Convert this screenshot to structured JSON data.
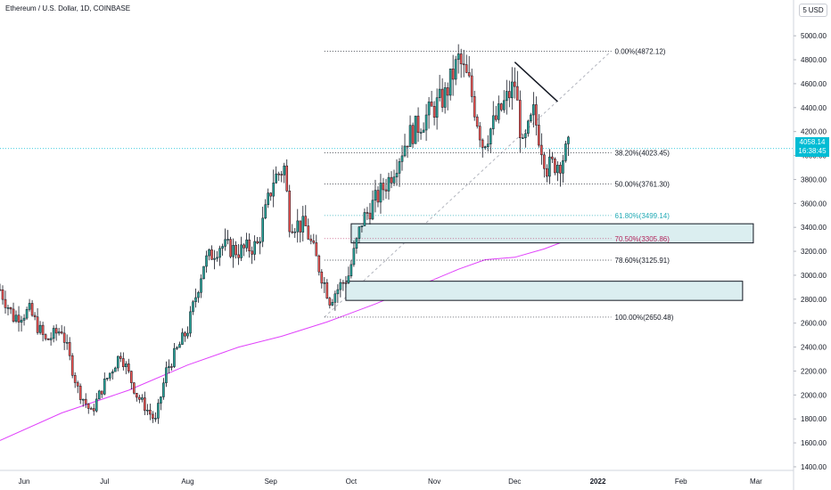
{
  "header": {
    "title": "Ethereum / U.S. Dollar, 1D, COINBASE"
  },
  "currency_badge": {
    "prefix": "5",
    "label": "USD"
  },
  "last_price": {
    "value": "4058.14",
    "countdown": "16:38:45"
  },
  "colors": {
    "up": "#26a69a",
    "down": "#ef5350",
    "text_up_fib": "#089981",
    "accent_fib_618": "#22aab5",
    "accent_fib_705": "#b2245b",
    "ma_line": "#e040fb",
    "zone_fill": "#dbeef0",
    "tag_bg": "#00bcd4"
  },
  "chart_data": {
    "type": "candlestick",
    "y_axis": {
      "ticks": [
        "5000.00",
        "4800.00",
        "4600.00",
        "4400.00",
        "4200.00",
        "4000.00",
        "3800.00",
        "3600.00",
        "3400.00",
        "3200.00",
        "3000.00",
        "2800.00",
        "2600.00",
        "2400.00",
        "2200.00",
        "2000.00",
        "1800.00",
        "1600.00",
        "1400.00"
      ],
      "range": [
        1370,
        5150
      ]
    },
    "x_axis": {
      "labels": [
        "Jun",
        "Jul",
        "Aug",
        "Sep",
        "Oct",
        "Nov",
        "Dec",
        "2022",
        "Feb",
        "Mar"
      ],
      "range": [
        "2021-05-23",
        "2022-03-15"
      ]
    },
    "fib_levels": [
      {
        "label": "0.00%(4872.12)",
        "value": 4872.12,
        "color": "#131722"
      },
      {
        "label": "38.20%(4023.45)",
        "value": 4023.45,
        "color": "#131722"
      },
      {
        "label": "50.00%(3761.30)",
        "value": 3761.3,
        "color": "#131722"
      },
      {
        "label": "61.80%(3499.14)",
        "value": 3499.14,
        "color": "#22aab5"
      },
      {
        "label": "70.50%(3305.86)",
        "value": 3305.86,
        "color": "#b2245b"
      },
      {
        "label": "78.60%(3125.91)",
        "value": 3125.91,
        "color": "#131722"
      },
      {
        "label": "100.00%(2650.48)",
        "value": 2650.48,
        "color": "#131722"
      }
    ],
    "zones": [
      {
        "start": "2021-10-01",
        "end": "2022-02-28",
        "high": 3430,
        "low": 3270
      },
      {
        "start": "2021-09-29",
        "end": "2022-02-24",
        "high": 2950,
        "low": 2790
      }
    ],
    "trendline": {
      "start": [
        "2021-12-01",
        4780
      ],
      "end": [
        "2021-12-17",
        4450
      ]
    },
    "fib_trend": {
      "start": [
        "2021-09-21",
        2650
      ],
      "end": [
        "2022-01-06",
        4872
      ]
    },
    "moving_average": [
      [
        "2021-05-23",
        1620
      ],
      [
        "2021-06-15",
        1850
      ],
      [
        "2021-07-10",
        2040
      ],
      [
        "2021-08-01",
        2250
      ],
      [
        "2021-08-20",
        2400
      ],
      [
        "2021-09-05",
        2490
      ],
      [
        "2021-09-22",
        2610
      ],
      [
        "2021-10-10",
        2760
      ],
      [
        "2021-10-25",
        2900
      ],
      [
        "2021-11-10",
        3050
      ],
      [
        "2021-11-20",
        3130
      ],
      [
        "2021-12-01",
        3150
      ],
      [
        "2021-12-12",
        3220
      ],
      [
        "2021-12-22",
        3305
      ]
    ],
    "price_path": [
      [
        "2021-05-23",
        2880
      ],
      [
        "2021-05-28",
        2650
      ],
      [
        "2021-06-03",
        2700
      ],
      [
        "2021-06-09",
        2450
      ],
      [
        "2021-06-15",
        2550
      ],
      [
        "2021-06-21",
        2050
      ],
      [
        "2021-06-26",
        1850
      ],
      [
        "2021-07-01",
        2100
      ],
      [
        "2021-07-07",
        2350
      ],
      [
        "2021-07-13",
        2000
      ],
      [
        "2021-07-20",
        1780
      ],
      [
        "2021-07-24",
        2200
      ],
      [
        "2021-08-01",
        2550
      ],
      [
        "2021-08-07",
        3100
      ],
      [
        "2021-08-13",
        3250
      ],
      [
        "2021-08-20",
        3200
      ],
      [
        "2021-08-27",
        3250
      ],
      [
        "2021-09-02",
        3800
      ],
      [
        "2021-09-06",
        3900
      ],
      [
        "2021-09-08",
        3450
      ],
      [
        "2021-09-14",
        3400
      ],
      [
        "2021-09-20",
        3000
      ],
      [
        "2021-09-23",
        2800
      ],
      [
        "2021-09-30",
        3000
      ],
      [
        "2021-10-05",
        3450
      ],
      [
        "2021-10-15",
        3800
      ],
      [
        "2021-10-22",
        4150
      ],
      [
        "2021-10-28",
        4300
      ],
      [
        "2021-11-05",
        4500
      ],
      [
        "2021-11-10",
        4800
      ],
      [
        "2021-11-14",
        4600
      ],
      [
        "2021-11-19",
        4100
      ],
      [
        "2021-11-24",
        4300
      ],
      [
        "2021-12-01",
        4600
      ],
      [
        "2021-12-04",
        4050
      ],
      [
        "2021-12-08",
        4350
      ],
      [
        "2021-12-13",
        3900
      ],
      [
        "2021-12-18",
        3950
      ],
      [
        "2021-12-21",
        4058.14
      ]
    ]
  }
}
